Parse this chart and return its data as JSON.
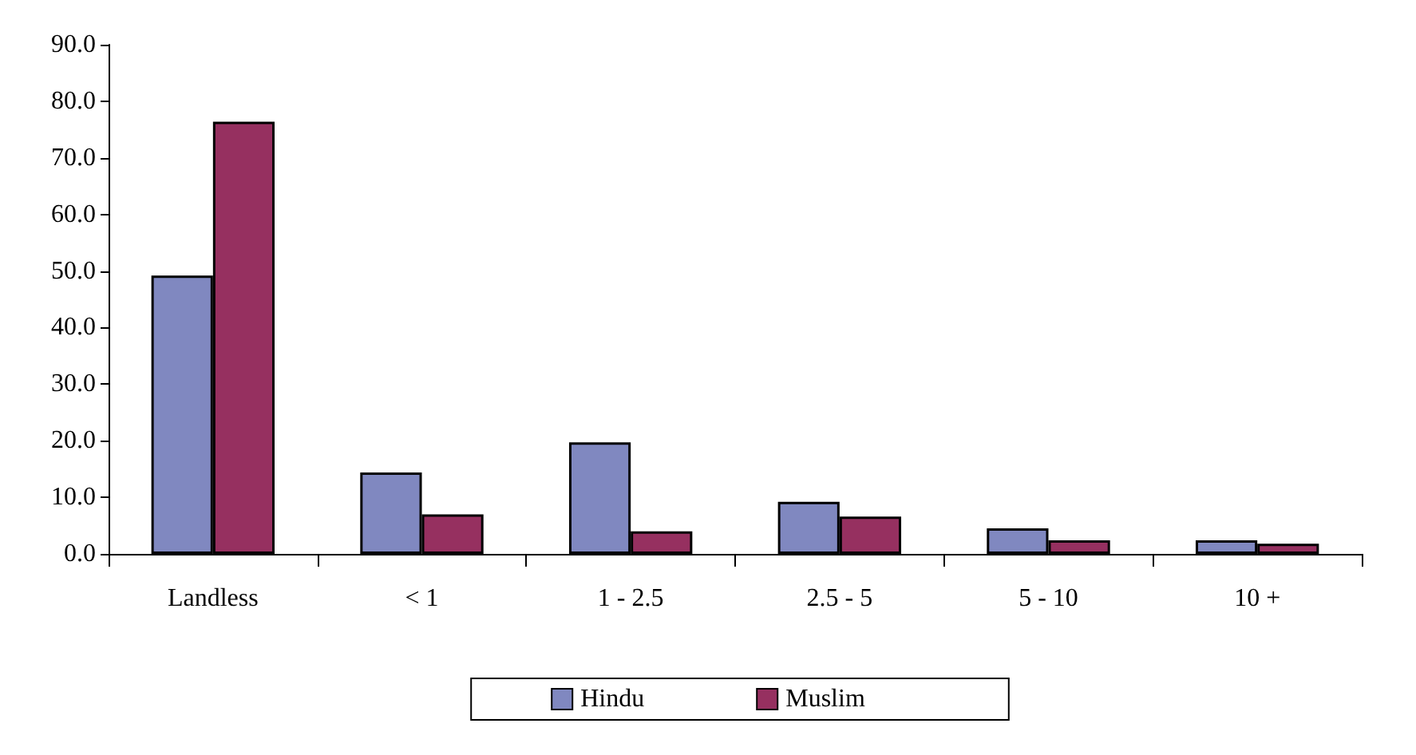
{
  "chart_data": {
    "type": "bar",
    "categories": [
      "Landless",
      "< 1",
      "1 - 2.5",
      "2.5 - 5",
      "5 - 10",
      "10 +"
    ],
    "series": [
      {
        "name": "Hindu",
        "color": "#8088c0",
        "values": [
          49.2,
          14.4,
          19.7,
          9.2,
          4.5,
          2.4
        ]
      },
      {
        "name": "Muslim",
        "color": "#963060",
        "values": [
          76.4,
          7.0,
          4.0,
          6.6,
          2.4,
          1.8
        ]
      }
    ],
    "ylim": [
      0,
      90
    ],
    "yticks": [
      {
        "value": 0,
        "label": "0.0"
      },
      {
        "value": 10,
        "label": "10.0"
      },
      {
        "value": 20,
        "label": "20.0"
      },
      {
        "value": 30,
        "label": "30.0"
      },
      {
        "value": 40,
        "label": "40.0"
      },
      {
        "value": 50,
        "label": "50.0"
      },
      {
        "value": 60,
        "label": "60.0"
      },
      {
        "value": 70,
        "label": "70.0"
      },
      {
        "value": 80,
        "label": "80.0"
      },
      {
        "value": 90,
        "label": "90.0"
      }
    ],
    "grid": false,
    "legend": "bottom"
  }
}
